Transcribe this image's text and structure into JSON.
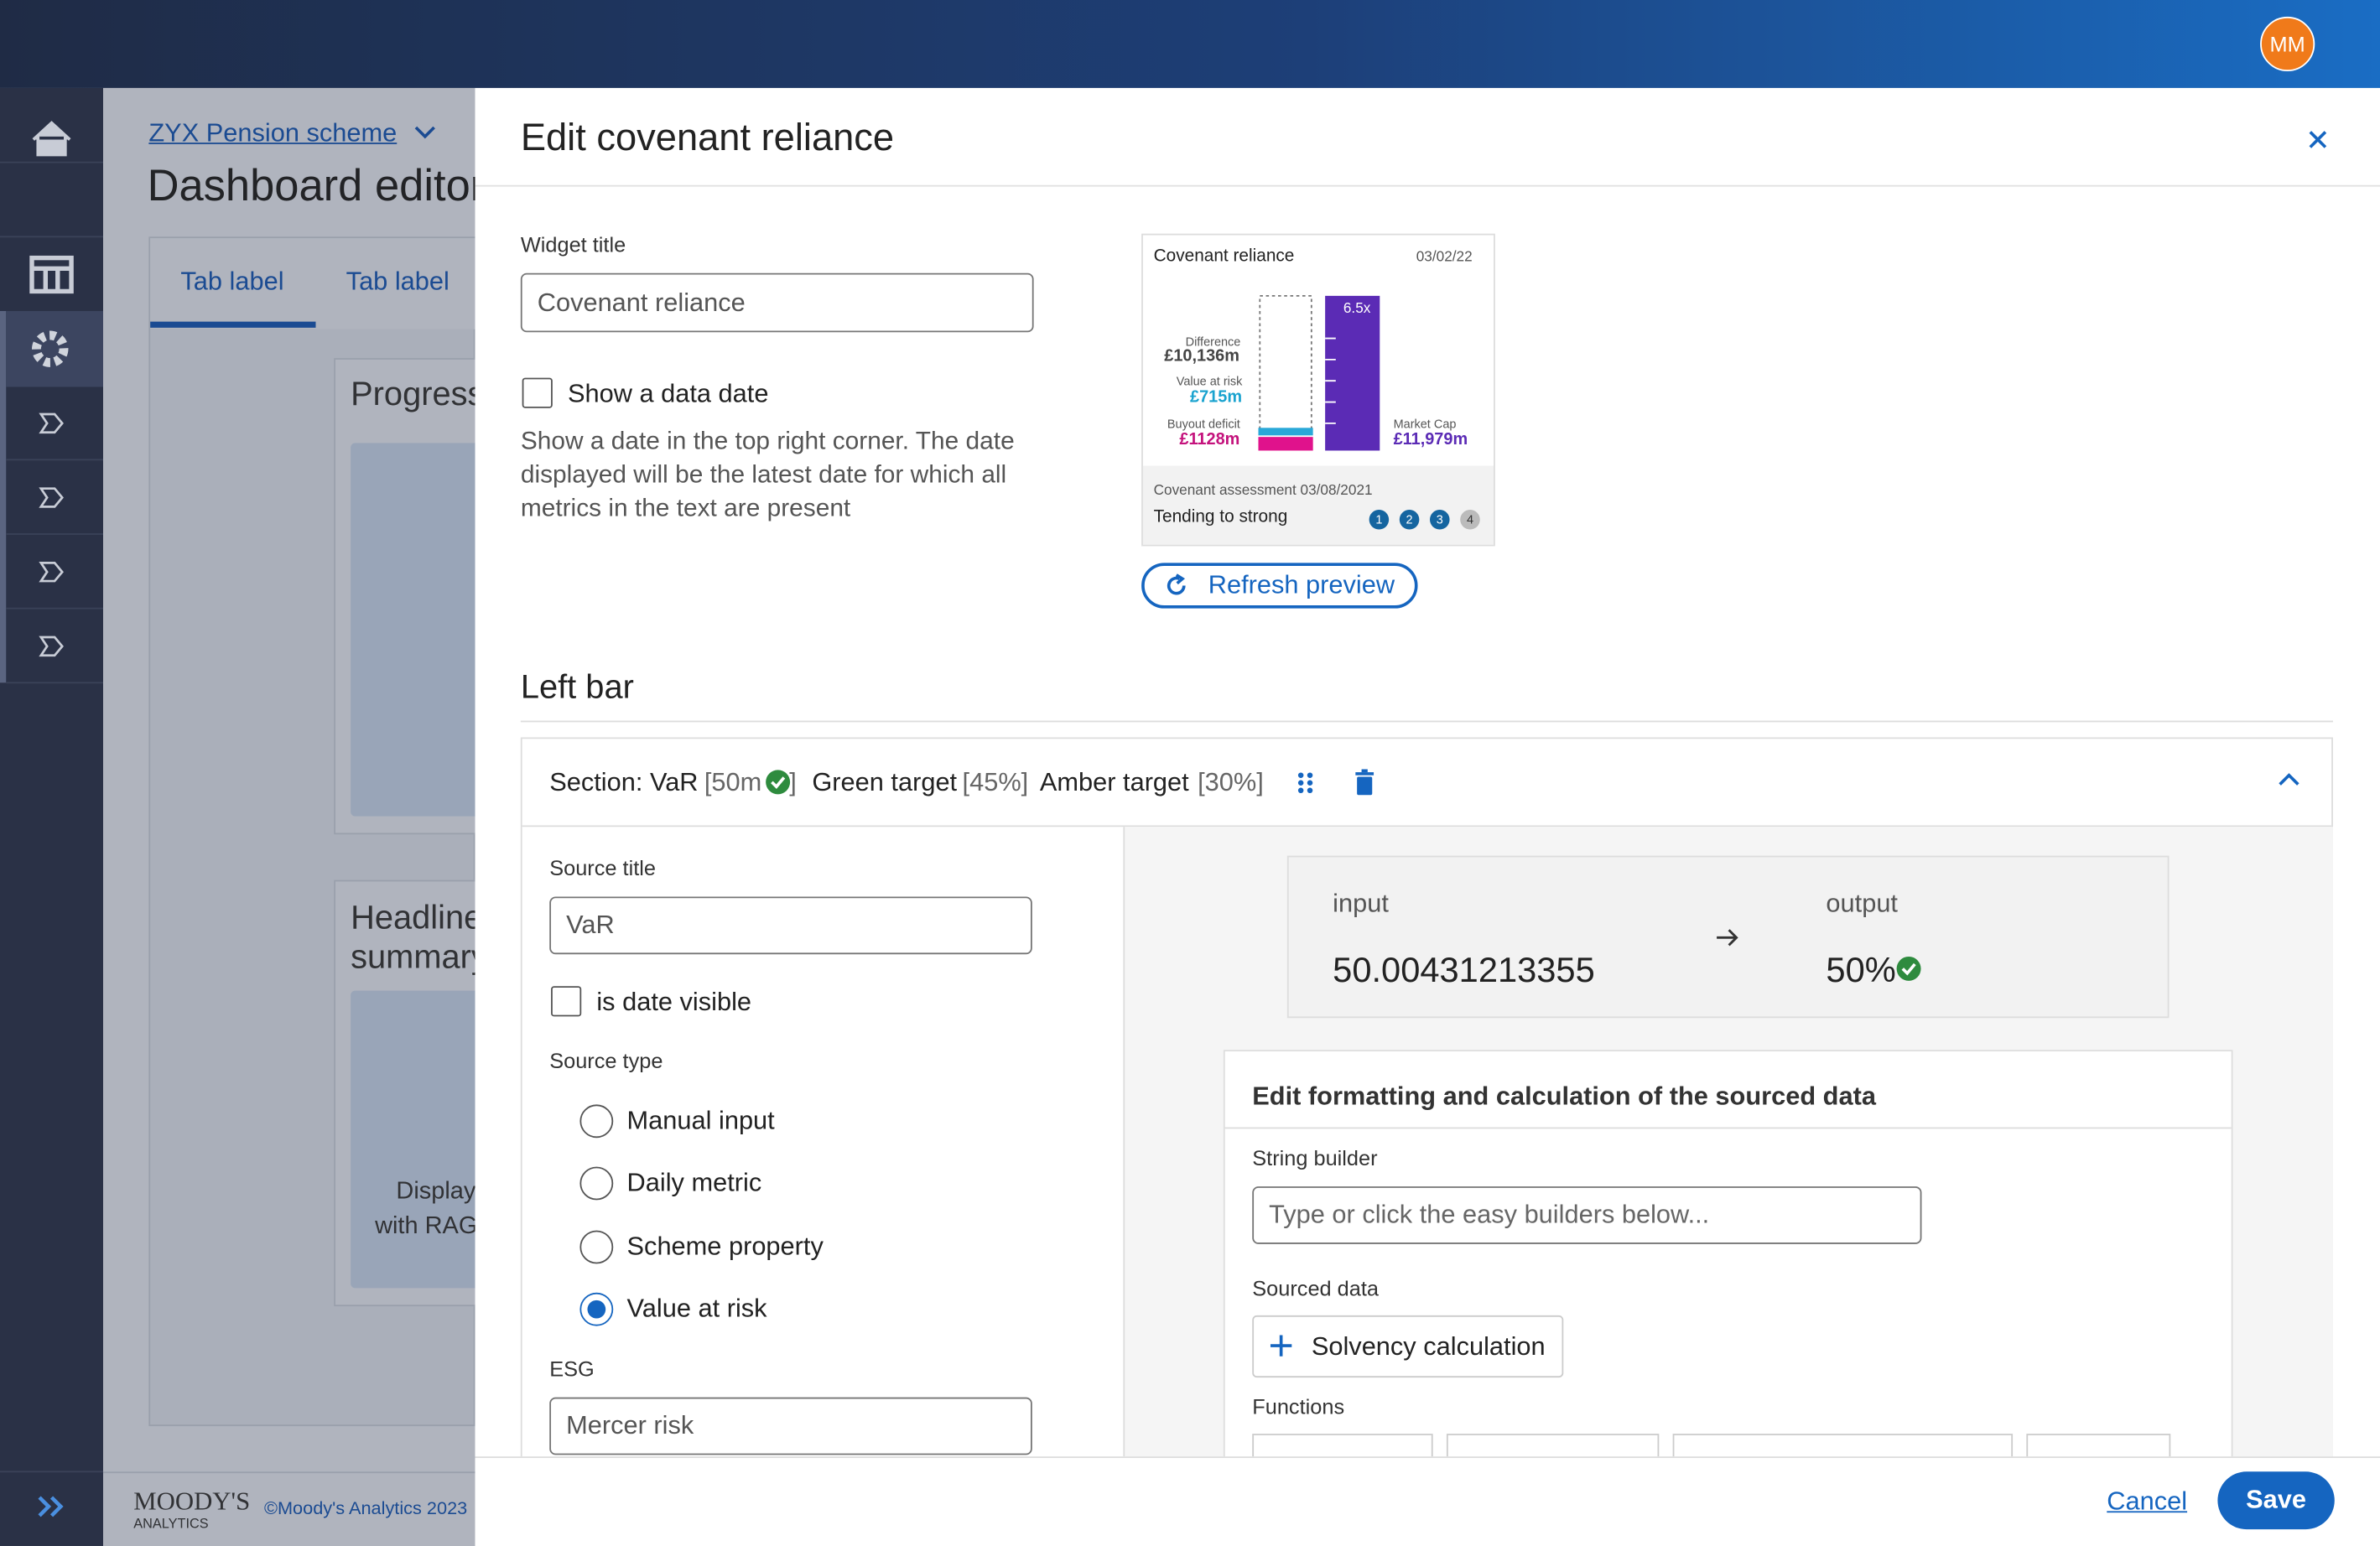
{
  "header": {
    "avatar": "MM"
  },
  "page": {
    "breadcrumb": "ZYX Pension scheme",
    "title": "Dashboard editor",
    "tabs": [
      "Tab label",
      "Tab label"
    ],
    "cards": [
      {
        "title": "Progress"
      },
      {
        "title": "Headline summary",
        "body": [
          "Display",
          "with RAG"
        ]
      }
    ],
    "footer": {
      "brand": "MOODY'S",
      "brand_sub": "ANALYTICS",
      "copyright": "©Moody's Analytics 2023"
    }
  },
  "modal": {
    "title": "Edit covenant reliance",
    "widget_title_label": "Widget title",
    "widget_title_value": "Covenant reliance",
    "show_date_label": "Show a data date",
    "show_date_help": [
      "Show a date in the top right corner. The date",
      "displayed will be the latest date for which all",
      "metrics in the text are present"
    ],
    "preview": {
      "title": "Covenant reliance",
      "date": "03/02/22",
      "difference_label": "Difference",
      "difference": "£10,136m",
      "var_label": "Value at risk",
      "var": "£715m",
      "deficit_label": "Buyout deficit",
      "deficit": "£1128m",
      "multiple": "6.5x",
      "cap_label": "Market Cap",
      "cap": "£11,979m",
      "assessment": "Covenant assessment 03/08/2021",
      "rating": "Tending to strong",
      "steps": [
        "1",
        "2",
        "3",
        "4"
      ]
    },
    "refresh": "Refresh preview",
    "section_heading": "Left bar",
    "section": {
      "name": "Section: VaR",
      "value_open": "[50m",
      "value_close": "]",
      "green_label": "Green target",
      "green": "[45%]",
      "amber_label": "Amber target",
      "amber": "[30%]"
    },
    "source_title_label": "Source title",
    "source_title_value": "VaR",
    "date_visible_label": "is date visible",
    "source_type_label": "Source type",
    "source_types": [
      "Manual input",
      "Daily metric",
      "Scheme property",
      "Value at risk"
    ],
    "esg_label": "ESG",
    "esg_value": "Mercer risk",
    "io": {
      "input_label": "input",
      "input": "50.00431213355",
      "output_label": "output",
      "output": "50%"
    },
    "formatting": {
      "title": "Edit formatting and calculation of the sourced data",
      "string_builder_label": "String builder",
      "string_builder_placeholder": "Type or click the easy builders below...",
      "sourced_data_label": "Sourced data",
      "sourced_data_button": "Solvency calculation",
      "functions_label": "Functions"
    },
    "cancel": "Cancel",
    "save": "Save"
  }
}
